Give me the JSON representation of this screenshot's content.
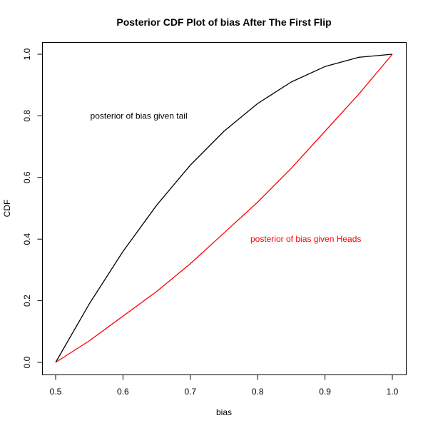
{
  "chart_data": {
    "type": "line",
    "title": "Posterior CDF Plot of bias After The First Flip",
    "xlabel": "bias",
    "ylabel": "CDF",
    "xlim": [
      0.5,
      1.0
    ],
    "ylim": [
      0.0,
      1.0
    ],
    "xticks": [
      "0.5",
      "0.6",
      "0.7",
      "0.8",
      "0.9",
      "1.0"
    ],
    "yticks": [
      "0.0",
      "0.2",
      "0.4",
      "0.6",
      "0.8",
      "1.0"
    ],
    "grid": false,
    "series": [
      {
        "color": "#000000",
        "x": [
          0.5,
          0.55,
          0.6,
          0.65,
          0.7,
          0.75,
          0.8,
          0.85,
          0.9,
          0.95,
          1.0
        ],
        "y": [
          0.0,
          0.19,
          0.36,
          0.51,
          0.64,
          0.75,
          0.84,
          0.91,
          0.96,
          0.99,
          1.0
        ]
      },
      {
        "color": "#ff0000",
        "x": [
          0.5,
          0.55,
          0.6,
          0.65,
          0.7,
          0.75,
          0.8,
          0.85,
          0.9,
          0.95,
          1.0
        ],
        "y": [
          0.0,
          0.07,
          0.15,
          0.23,
          0.32,
          0.42,
          0.52,
          0.63,
          0.75,
          0.87,
          1.0
        ]
      }
    ],
    "annotations": [
      {
        "text": "posterior of bias given tail",
        "x": 0.6235,
        "y": 0.8,
        "color": "#000000"
      },
      {
        "text": "posterior of bias given Heads",
        "x": 0.8715,
        "y": 0.4,
        "color": "#ff0000"
      }
    ]
  }
}
